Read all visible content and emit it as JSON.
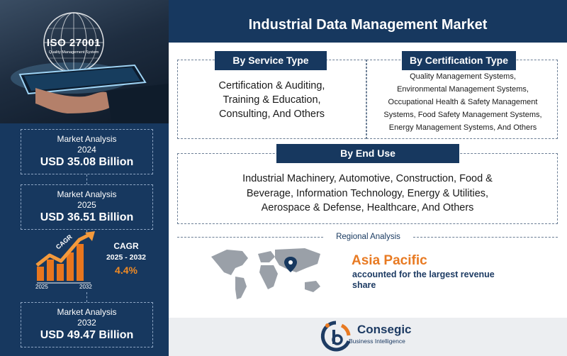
{
  "title": "Industrial Data Management Market",
  "hero": {
    "iso_title": "ISO 27001",
    "iso_subtitle": "Quality Management System"
  },
  "stats": {
    "y2024": {
      "label": "Market Analysis",
      "year": "2024",
      "value": "USD 35.08 Billion"
    },
    "y2025": {
      "label": "Market Analysis",
      "year": "2025",
      "value": "USD 36.51 Billion"
    },
    "y2032": {
      "label": "Market Analysis",
      "year": "2032",
      "value": "USD 49.47 Billion"
    }
  },
  "cagr": {
    "label": "CAGR",
    "years": "2025 - 2032",
    "value": "4.4%",
    "chart_word": "CAGR",
    "start_year": "2025",
    "end_year": "2032"
  },
  "segments": {
    "service": {
      "title": "By Service Type",
      "line1": "Certification & Auditing,",
      "line2": "Training & Education,",
      "line3": "Consulting, And Others"
    },
    "certification": {
      "title": "By Certification Type",
      "line1": "Quality Management Systems,",
      "line2": "Environmental Management Systems,",
      "line3": "Occupational Health & Safety Management",
      "line4": "Systems, Food Safety Management Systems,",
      "line5": "Energy Management Systems, And Others"
    },
    "end_use": {
      "title": "By End Use",
      "line1": "Industrial Machinery, Automotive, Construction, Food &",
      "line2": "Beverage, Information Technology, Energy & Utilities,",
      "line3": "Aerospace & Defense, Healthcare, And Others"
    }
  },
  "regional": {
    "title": "Regional Analysis",
    "region": "Asia Pacific",
    "desc_line1": "accounted for the largest revenue",
    "desc_line2": "share"
  },
  "brand": {
    "name": "Consegic",
    "tagline": "Business Intelligence"
  },
  "colors": {
    "navy": "#17385f",
    "accent_orange": "#e87a22",
    "footer_bg": "#eceef1"
  }
}
